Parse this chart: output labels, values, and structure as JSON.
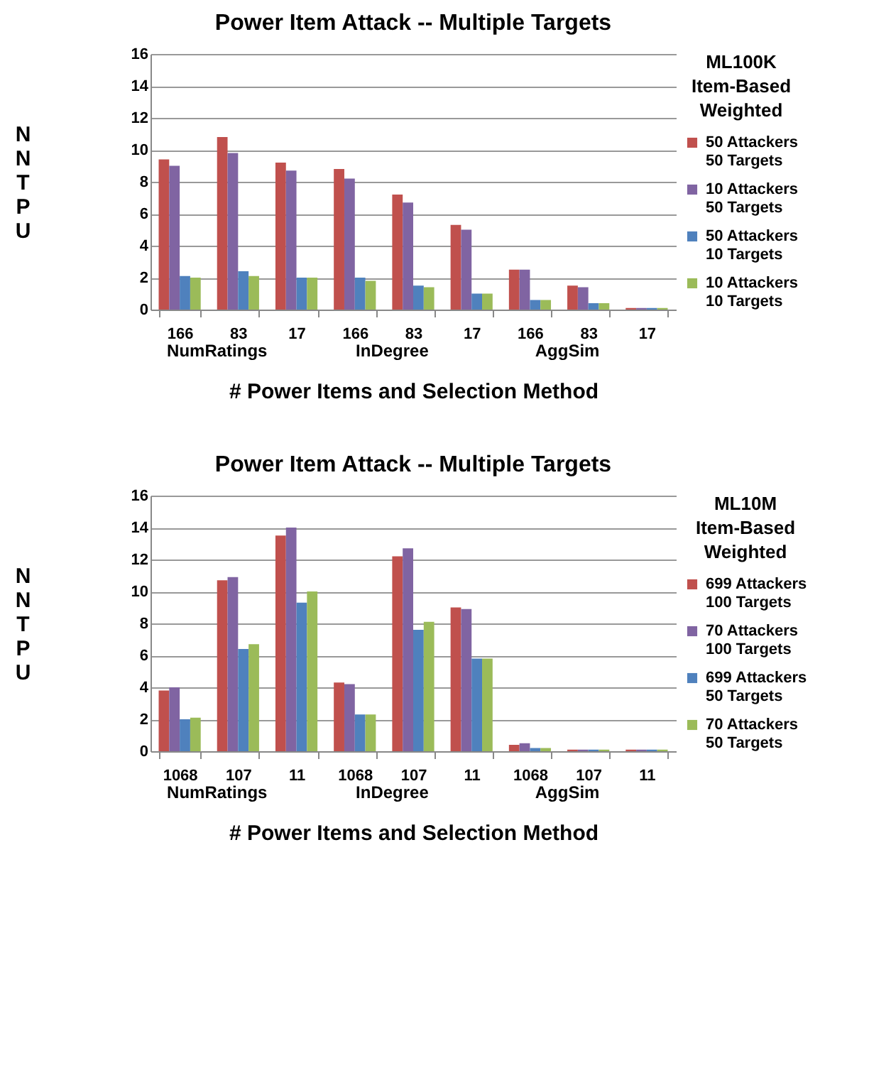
{
  "chart_data": [
    {
      "type": "bar",
      "title": "Power Item Attack -- Multiple Targets",
      "xlabel": "# Power Items and Selection Method",
      "ylabel": "NNTPU",
      "legend_title": "ML100K\nItem-Based\nWeighted",
      "legend": "right",
      "grid": "y",
      "ylim": [
        0,
        16
      ],
      "yticks": [
        0,
        2,
        4,
        6,
        8,
        10,
        12,
        14,
        16
      ],
      "categories": [
        "166",
        "83",
        "17",
        "166",
        "83",
        "17",
        "166",
        "83",
        "17"
      ],
      "annotations": [
        "NumRatings",
        "InDegree",
        "AggSim"
      ],
      "series": [
        {
          "name": "50 Attackers\n50 Targets",
          "color": "#c0504d",
          "values": [
            9.4,
            10.8,
            9.2,
            8.8,
            7.2,
            5.3,
            2.5,
            1.5,
            0.1
          ]
        },
        {
          "name": "10 Attackers\n50 Targets",
          "color": "#8064a2",
          "values": [
            9.0,
            9.8,
            8.7,
            8.2,
            6.7,
            5.0,
            2.5,
            1.4,
            0.1
          ]
        },
        {
          "name": "50 Attackers\n10 Targets",
          "color": "#4f81bd",
          "values": [
            2.1,
            2.4,
            2.0,
            2.0,
            1.5,
            1.0,
            0.6,
            0.4,
            0.1
          ]
        },
        {
          "name": "10 Attackers\n10 Targets",
          "color": "#9bbb59",
          "values": [
            2.0,
            2.1,
            2.0,
            1.8,
            1.4,
            1.0,
            0.6,
            0.4,
            0.1
          ]
        }
      ]
    },
    {
      "type": "bar",
      "title": "Power Item Attack -- Multiple Targets",
      "xlabel": "# Power Items and Selection Method",
      "ylabel": "NNTPU",
      "legend_title": "ML10M\nItem-Based\nWeighted",
      "legend": "right",
      "grid": "y",
      "ylim": [
        0,
        16
      ],
      "yticks": [
        0,
        2,
        4,
        6,
        8,
        10,
        12,
        14,
        16
      ],
      "categories": [
        "1068",
        "107",
        "11",
        "1068",
        "107",
        "11",
        "1068",
        "107",
        "11"
      ],
      "annotations": [
        "NumRatings",
        "InDegree",
        "AggSim"
      ],
      "series": [
        {
          "name": "699 Attackers\n100 Targets",
          "color": "#c0504d",
          "values": [
            3.8,
            10.7,
            13.5,
            4.3,
            12.2,
            9.0,
            0.4,
            0.1,
            0.1
          ]
        },
        {
          "name": "70 Attackers\n100 Targets",
          "color": "#8064a2",
          "values": [
            4.0,
            10.9,
            14.0,
            4.2,
            12.7,
            8.9,
            0.5,
            0.1,
            0.1
          ]
        },
        {
          "name": "699 Attackers\n50 Targets",
          "color": "#4f81bd",
          "values": [
            2.0,
            6.4,
            9.3,
            2.3,
            7.6,
            5.8,
            0.2,
            0.1,
            0.1
          ]
        },
        {
          "name": "70 Attackers\n50 Targets",
          "color": "#9bbb59",
          "values": [
            2.1,
            6.7,
            10.0,
            2.3,
            8.1,
            5.8,
            0.2,
            0.1,
            0.1
          ]
        }
      ]
    }
  ]
}
